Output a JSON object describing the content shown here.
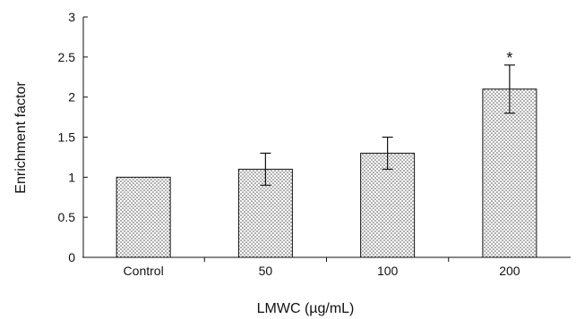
{
  "chart_data": {
    "type": "bar",
    "title": "",
    "xlabel": "LMWC (µg/mL)",
    "ylabel": "Enrichment factor",
    "categories": [
      "Control",
      "50",
      "100",
      "200"
    ],
    "values": [
      1.0,
      1.1,
      1.3,
      2.1
    ],
    "errors": [
      0,
      0.2,
      0.2,
      0.3
    ],
    "annotations": [
      "",
      "",
      "",
      "*"
    ],
    "ylim": [
      0,
      3
    ],
    "yticks": [
      0,
      0.5,
      1,
      1.5,
      2,
      2.5,
      3
    ],
    "ytick_labels": [
      "0",
      "0.5",
      "1",
      "1.5",
      "2",
      "2.5",
      "3"
    ],
    "grid": false,
    "bar_fill": "dotted"
  }
}
